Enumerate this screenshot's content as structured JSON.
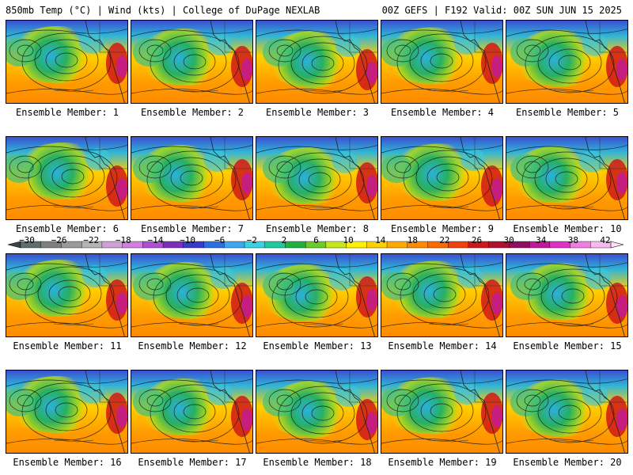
{
  "header": {
    "left": "850mb Temp (°C) | Wind (kts) | College of DuPage NEXLAB",
    "right": "00Z GEFS | F192 Valid: 00Z SUN JUN 15 2025"
  },
  "panels": [
    {
      "caption": "Ensemble Member: 1"
    },
    {
      "caption": "Ensemble Member: 2"
    },
    {
      "caption": "Ensemble Member: 3"
    },
    {
      "caption": "Ensemble Member: 4"
    },
    {
      "caption": "Ensemble Member: 5"
    },
    {
      "caption": "Ensemble Member: 6"
    },
    {
      "caption": "Ensemble Member: 7"
    },
    {
      "caption": "Ensemble Member: 8"
    },
    {
      "caption": "Ensemble Member: 9"
    },
    {
      "caption": "Ensemble Member: 10"
    },
    {
      "caption": "Ensemble Member: 11"
    },
    {
      "caption": "Ensemble Member: 12"
    },
    {
      "caption": "Ensemble Member: 13"
    },
    {
      "caption": "Ensemble Member: 14"
    },
    {
      "caption": "Ensemble Member: 15"
    },
    {
      "caption": "Ensemble Member: 16"
    },
    {
      "caption": "Ensemble Member: 17"
    },
    {
      "caption": "Ensemble Member: 18"
    },
    {
      "caption": "Ensemble Member: 19"
    },
    {
      "caption": "Ensemble Member: 20"
    }
  ],
  "colorbar": {
    "tick_labels": [
      "−30",
      "−26",
      "−22",
      "−18",
      "−14",
      "−10",
      "−6",
      "−2",
      "2",
      "6",
      "10",
      "14",
      "18",
      "22",
      "26",
      "30",
      "34",
      "38",
      "42"
    ],
    "colors": [
      "#5e6e6e",
      "#7f7f7f",
      "#9a9a9a",
      "#b4b4b4",
      "#cfa0d6",
      "#d37fe0",
      "#b14fd4",
      "#7c2fb8",
      "#3a3ac8",
      "#2e6fe0",
      "#3fa6f0",
      "#38d2e0",
      "#20c8a0",
      "#22b040",
      "#6acb2a",
      "#c8e61e",
      "#fff000",
      "#ffd000",
      "#ffaa00",
      "#ff8a00",
      "#ff6a00",
      "#f04010",
      "#d01818",
      "#b01030",
      "#901060",
      "#c01a9a",
      "#e030c8",
      "#f27ce0",
      "#f8b8f0"
    ]
  }
}
